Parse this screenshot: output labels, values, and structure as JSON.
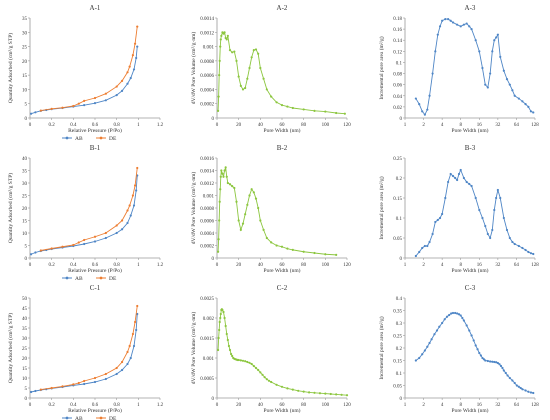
{
  "colors": {
    "ab": "#4f86c6",
    "de": "#ed7d31",
    "psd": "#8cc63f",
    "incr": "#4f86c6",
    "axis": "#9a9a9a",
    "text": "#333333"
  },
  "chart_data": [
    {
      "id": "A-1",
      "type": "line",
      "title": "A-1",
      "xlabel": "Relative Pressure (P/Po)",
      "ylabel": "Quantity Adsorbed (cm³/g STP)",
      "xlim": [
        0,
        1.2
      ],
      "ylim": [
        0,
        35
      ],
      "xticks": [
        0,
        0.2,
        0.4,
        0.6,
        0.8,
        1,
        1.2
      ],
      "yticks": [
        0,
        5,
        10,
        15,
        20,
        25,
        30,
        35
      ],
      "legend": [
        "AB",
        "DE"
      ],
      "series": [
        {
          "name": "AB",
          "x": [
            0.01,
            0.05,
            0.1,
            0.15,
            0.2,
            0.3,
            0.4,
            0.5,
            0.6,
            0.7,
            0.8,
            0.85,
            0.9,
            0.93,
            0.96,
            0.98,
            0.99
          ],
          "y": [
            1.5,
            2,
            2.5,
            2.8,
            3.1,
            3.5,
            4,
            4.5,
            5.2,
            6.2,
            8,
            9.5,
            12,
            14,
            17,
            21,
            25
          ]
        },
        {
          "name": "DE",
          "x": [
            0.99,
            0.97,
            0.95,
            0.92,
            0.9,
            0.85,
            0.8,
            0.7,
            0.6,
            0.5,
            0.45,
            0.4,
            0.3,
            0.2,
            0.1
          ],
          "y": [
            32,
            26,
            22,
            18,
            16,
            13,
            11,
            8.5,
            7,
            6,
            5,
            4.2,
            3.6,
            3.2,
            2.6
          ]
        }
      ]
    },
    {
      "id": "A-2",
      "type": "line",
      "title": "A-2",
      "xlabel": "Pore Width (nm)",
      "ylabel": "dV/dW Pore Volume (cm³/g·nm)",
      "xlim": [
        0,
        120
      ],
      "ylim": [
        0,
        0.0014
      ],
      "xticks": [
        0,
        20,
        40,
        60,
        80,
        100,
        120
      ],
      "yticks": [
        0,
        0.0002,
        0.0004,
        0.0006,
        0.0008,
        0.001,
        0.0012,
        0.0014
      ],
      "series": [
        {
          "name": "",
          "x": [
            1,
            1.5,
            2,
            2.5,
            3,
            3.5,
            4,
            5,
            6,
            7,
            8,
            9,
            10,
            12,
            14,
            16,
            18,
            20,
            22,
            24,
            26,
            28,
            30,
            32,
            34,
            36,
            38,
            40,
            43,
            46,
            50,
            55,
            60,
            65,
            70,
            80,
            90,
            100,
            110,
            118
          ],
          "y": [
            0.0001,
            0.0003,
            0.0006,
            0.0008,
            0.001,
            0.0011,
            0.00115,
            0.0012,
            0.00118,
            0.0012,
            0.00112,
            0.0011,
            0.00115,
            0.00095,
            0.00092,
            0.00093,
            0.0008,
            0.00058,
            0.00045,
            0.0004,
            0.00042,
            0.00055,
            0.0007,
            0.00085,
            0.00095,
            0.00096,
            0.0009,
            0.0007,
            0.00055,
            0.0004,
            0.0003,
            0.00022,
            0.00018,
            0.00016,
            0.00014,
            0.00012,
            0.0001,
            9e-05,
            7e-05,
            6e-05
          ]
        }
      ]
    },
    {
      "id": "A-3",
      "type": "line",
      "title": "A-3",
      "xlabel": "Pore Width (nm)",
      "ylabel": "Incremental pore area (m²/g)",
      "xscale": "log2",
      "xlim": [
        1,
        128
      ],
      "ylim": [
        0,
        0.18
      ],
      "xticks": [
        1,
        2,
        4,
        8,
        16,
        32,
        64,
        128
      ],
      "yticks": [
        0,
        0.02,
        0.04,
        0.06,
        0.08,
        0.1,
        0.12,
        0.14,
        0.16,
        0.18
      ],
      "series": [
        {
          "name": "",
          "x": [
            1.5,
            1.7,
            1.9,
            2.1,
            2.3,
            2.5,
            2.8,
            3.1,
            3.4,
            3.7,
            4,
            4.5,
            5,
            5.5,
            6,
            7,
            8,
            9,
            10,
            11,
            12,
            14,
            16,
            18,
            20,
            22,
            24,
            26,
            28,
            30,
            32,
            35,
            40,
            45,
            50,
            55,
            60,
            70,
            80,
            90,
            100,
            110,
            120
          ],
          "y": [
            0.035,
            0.025,
            0.012,
            0.006,
            0.015,
            0.04,
            0.08,
            0.12,
            0.15,
            0.165,
            0.175,
            0.178,
            0.178,
            0.175,
            0.172,
            0.168,
            0.165,
            0.168,
            0.17,
            0.165,
            0.16,
            0.14,
            0.12,
            0.09,
            0.06,
            0.055,
            0.08,
            0.12,
            0.14,
            0.145,
            0.15,
            0.11,
            0.085,
            0.07,
            0.06,
            0.05,
            0.04,
            0.035,
            0.03,
            0.025,
            0.02,
            0.012,
            0.01
          ]
        }
      ]
    },
    {
      "id": "B-1",
      "type": "line",
      "title": "B-1",
      "xlabel": "Relative Pressure (P/Po)",
      "ylabel": "Quantity Adsorbed (cm³/g STP)",
      "xlim": [
        0,
        1.2
      ],
      "ylim": [
        0,
        40
      ],
      "xticks": [
        0,
        0.2,
        0.4,
        0.6,
        0.8,
        1,
        1.2
      ],
      "yticks": [
        0,
        5,
        10,
        15,
        20,
        25,
        30,
        35,
        40
      ],
      "legend": [
        "AB",
        "DE"
      ],
      "series": [
        {
          "name": "AB",
          "x": [
            0.01,
            0.05,
            0.1,
            0.15,
            0.2,
            0.3,
            0.4,
            0.5,
            0.6,
            0.7,
            0.8,
            0.85,
            0.9,
            0.93,
            0.96,
            0.98,
            0.99
          ],
          "y": [
            1.5,
            2.2,
            2.8,
            3.2,
            3.6,
            4.2,
            4.8,
            5.6,
            6.6,
            8,
            10,
            11.5,
            14,
            17,
            21,
            27,
            33
          ]
        },
        {
          "name": "DE",
          "x": [
            0.99,
            0.97,
            0.95,
            0.92,
            0.9,
            0.85,
            0.8,
            0.7,
            0.6,
            0.5,
            0.45,
            0.4,
            0.3,
            0.2,
            0.1
          ],
          "y": [
            36,
            29,
            25,
            21,
            19,
            15,
            13,
            10,
            8.5,
            7.2,
            6.2,
            5.2,
            4.5,
            3.8,
            3
          ]
        }
      ]
    },
    {
      "id": "B-2",
      "type": "line",
      "title": "B-2",
      "xlabel": "Pore Width (nm)",
      "ylabel": "dV/dW Pore Volume (cm³/g·nm)",
      "xlim": [
        0,
        120
      ],
      "ylim": [
        0,
        0.0016
      ],
      "xticks": [
        0,
        20,
        40,
        60,
        80,
        100,
        120
      ],
      "yticks": [
        0,
        0.0002,
        0.0004,
        0.0006,
        0.0008,
        0.001,
        0.0012,
        0.0014,
        0.0016
      ],
      "series": [
        {
          "name": "",
          "x": [
            1,
            1.5,
            2,
            2.5,
            3,
            3.5,
            4,
            5,
            6,
            7,
            8,
            9,
            10,
            12,
            14,
            16,
            18,
            20,
            22,
            24,
            26,
            28,
            30,
            32,
            34,
            36,
            38,
            40,
            43,
            46,
            50,
            55,
            60,
            65,
            70,
            80,
            90,
            100,
            110
          ],
          "y": [
            0.0001,
            0.0003,
            0.0006,
            0.0009,
            0.0011,
            0.0013,
            0.0014,
            0.00135,
            0.0013,
            0.0014,
            0.00145,
            0.0013,
            0.0012,
            0.00118,
            0.00115,
            0.00112,
            0.0009,
            0.0006,
            0.00045,
            0.00055,
            0.0007,
            0.00085,
            0.001,
            0.0011,
            0.00105,
            0.00095,
            0.0008,
            0.0006,
            0.00045,
            0.00032,
            0.00025,
            0.0002,
            0.00018,
            0.00015,
            0.00013,
            0.0001,
            8e-05,
            6e-05,
            5e-05
          ]
        }
      ]
    },
    {
      "id": "B-3",
      "type": "line",
      "title": "B-3",
      "xlabel": "Pore Width (nm)",
      "ylabel": "Incremental pore area (m²/g)",
      "xscale": "log2",
      "xlim": [
        1,
        128
      ],
      "ylim": [
        0,
        0.25
      ],
      "xticks": [
        1,
        2,
        4,
        8,
        16,
        32,
        64,
        128
      ],
      "yticks": [
        0,
        0.05,
        0.1,
        0.15,
        0.2,
        0.25
      ],
      "series": [
        {
          "name": "",
          "x": [
            1.5,
            1.7,
            1.9,
            2.1,
            2.3,
            2.5,
            2.8,
            3.1,
            3.4,
            3.7,
            4,
            4.5,
            5,
            5.5,
            6,
            6.5,
            7,
            7.5,
            8,
            9,
            10,
            11,
            12,
            14,
            16,
            18,
            20,
            22,
            24,
            26,
            28,
            30,
            32,
            35,
            40,
            45,
            50,
            55,
            60,
            70,
            80,
            90,
            100,
            110,
            120
          ],
          "y": [
            0.005,
            0.015,
            0.025,
            0.03,
            0.03,
            0.04,
            0.06,
            0.09,
            0.095,
            0.1,
            0.11,
            0.15,
            0.19,
            0.21,
            0.205,
            0.2,
            0.195,
            0.21,
            0.22,
            0.2,
            0.19,
            0.185,
            0.18,
            0.15,
            0.12,
            0.1,
            0.08,
            0.06,
            0.05,
            0.07,
            0.12,
            0.15,
            0.17,
            0.15,
            0.1,
            0.07,
            0.05,
            0.04,
            0.035,
            0.03,
            0.025,
            0.02,
            0.015,
            0.012,
            0.01
          ]
        }
      ]
    },
    {
      "id": "C-1",
      "type": "line",
      "title": "C-1",
      "xlabel": "Relative Pressure (P/Po)",
      "ylabel": "Quantity Adsorbed (cm³/g STP)",
      "xlim": [
        0,
        1.2
      ],
      "ylim": [
        0,
        50
      ],
      "xticks": [
        0,
        0.2,
        0.4,
        0.6,
        0.8,
        1,
        1.2
      ],
      "yticks": [
        0,
        5,
        10,
        15,
        20,
        25,
        30,
        35,
        40,
        45,
        50
      ],
      "legend": [
        "AB",
        "DE"
      ],
      "series": [
        {
          "name": "AB",
          "x": [
            0.01,
            0.05,
            0.1,
            0.15,
            0.2,
            0.3,
            0.4,
            0.5,
            0.6,
            0.7,
            0.8,
            0.85,
            0.9,
            0.93,
            0.96,
            0.98,
            0.99
          ],
          "y": [
            3,
            3.5,
            4,
            4.4,
            4.8,
            5.5,
            6.3,
            7,
            8,
            9.5,
            12,
            14,
            17,
            20,
            26,
            34,
            42
          ]
        },
        {
          "name": "DE",
          "x": [
            0.99,
            0.97,
            0.95,
            0.92,
            0.9,
            0.85,
            0.8,
            0.7,
            0.6,
            0.5,
            0.45,
            0.4,
            0.3,
            0.2,
            0.1
          ],
          "y": [
            46,
            38,
            32,
            26,
            23,
            18,
            15,
            12,
            10,
            8.5,
            7.5,
            6.8,
            5.8,
            5,
            4.2
          ]
        }
      ]
    },
    {
      "id": "C-2",
      "type": "line",
      "title": "C-2",
      "xlabel": "Pore Width (nm)",
      "ylabel": "dV/dW Pore Volume (cm³/g·nm)",
      "xlim": [
        0,
        120
      ],
      "ylim": [
        0,
        0.0025
      ],
      "xticks": [
        0,
        20,
        40,
        60,
        80,
        100,
        120
      ],
      "yticks": [
        0,
        0.0005,
        0.001,
        0.0015,
        0.002,
        0.0025
      ],
      "series": [
        {
          "name": "",
          "x": [
            1,
            1.5,
            2,
            2.5,
            3,
            3.5,
            4,
            4.5,
            5,
            6,
            7,
            8,
            9,
            10,
            11,
            12,
            13,
            14,
            15,
            16,
            17,
            18,
            19,
            20,
            22,
            24,
            26,
            28,
            30,
            32,
            34,
            36,
            38,
            40,
            42,
            44,
            46,
            48,
            50,
            55,
            60,
            65,
            70,
            75,
            80,
            85,
            90,
            95,
            100,
            105,
            110,
            115,
            120
          ],
          "y": [
            0.0012,
            0.0015,
            0.0017,
            0.0019,
            0.002,
            0.0021,
            0.0022,
            0.00222,
            0.0022,
            0.00215,
            0.002,
            0.0018,
            0.0016,
            0.00145,
            0.0013,
            0.0012,
            0.0011,
            0.00105,
            0.001,
            0.00098,
            0.00097,
            0.00096,
            0.00095,
            0.00095,
            0.00094,
            0.00093,
            0.00092,
            0.0009,
            0.00088,
            0.00085,
            0.0008,
            0.00075,
            0.0007,
            0.00064,
            0.00058,
            0.00052,
            0.00047,
            0.00043,
            0.0004,
            0.00033,
            0.00028,
            0.00024,
            0.00021,
            0.00018,
            0.00016,
            0.00014,
            0.00013,
            0.00012,
            0.00011,
            0.0001,
            9e-05,
            8e-05,
            7e-05
          ]
        }
      ]
    },
    {
      "id": "C-3",
      "type": "line",
      "title": "C-3",
      "xlabel": "Pore Width (nm)",
      "ylabel": "Incremental pore area (m²/g)",
      "xscale": "log2",
      "xlim": [
        1,
        128
      ],
      "ylim": [
        0,
        0.4
      ],
      "xticks": [
        1,
        2,
        4,
        8,
        16,
        32,
        64,
        128
      ],
      "yticks": [
        0,
        0.05,
        0.1,
        0.15,
        0.2,
        0.25,
        0.3,
        0.35,
        0.4
      ],
      "series": [
        {
          "name": "",
          "x": [
            1.5,
            1.7,
            1.9,
            2.1,
            2.3,
            2.5,
            2.7,
            3,
            3.3,
            3.6,
            4,
            4.4,
            4.8,
            5.2,
            5.6,
            6,
            6.5,
            7,
            7.5,
            8,
            8.5,
            9,
            10,
            11,
            12,
            13,
            14,
            15,
            16,
            17,
            18,
            19,
            20,
            22,
            24,
            26,
            28,
            30,
            32,
            34,
            36,
            38,
            40,
            43,
            46,
            50,
            55,
            60,
            65,
            70,
            75,
            80,
            90,
            100,
            110,
            120
          ],
          "y": [
            0.15,
            0.16,
            0.175,
            0.19,
            0.205,
            0.22,
            0.235,
            0.255,
            0.27,
            0.285,
            0.3,
            0.315,
            0.325,
            0.332,
            0.338,
            0.34,
            0.34,
            0.338,
            0.335,
            0.33,
            0.32,
            0.31,
            0.29,
            0.27,
            0.25,
            0.23,
            0.21,
            0.195,
            0.18,
            0.17,
            0.16,
            0.155,
            0.15,
            0.148,
            0.146,
            0.145,
            0.144,
            0.143,
            0.14,
            0.135,
            0.128,
            0.12,
            0.11,
            0.1,
            0.09,
            0.08,
            0.07,
            0.06,
            0.05,
            0.045,
            0.04,
            0.035,
            0.03,
            0.025,
            0.022,
            0.02
          ]
        }
      ]
    }
  ]
}
